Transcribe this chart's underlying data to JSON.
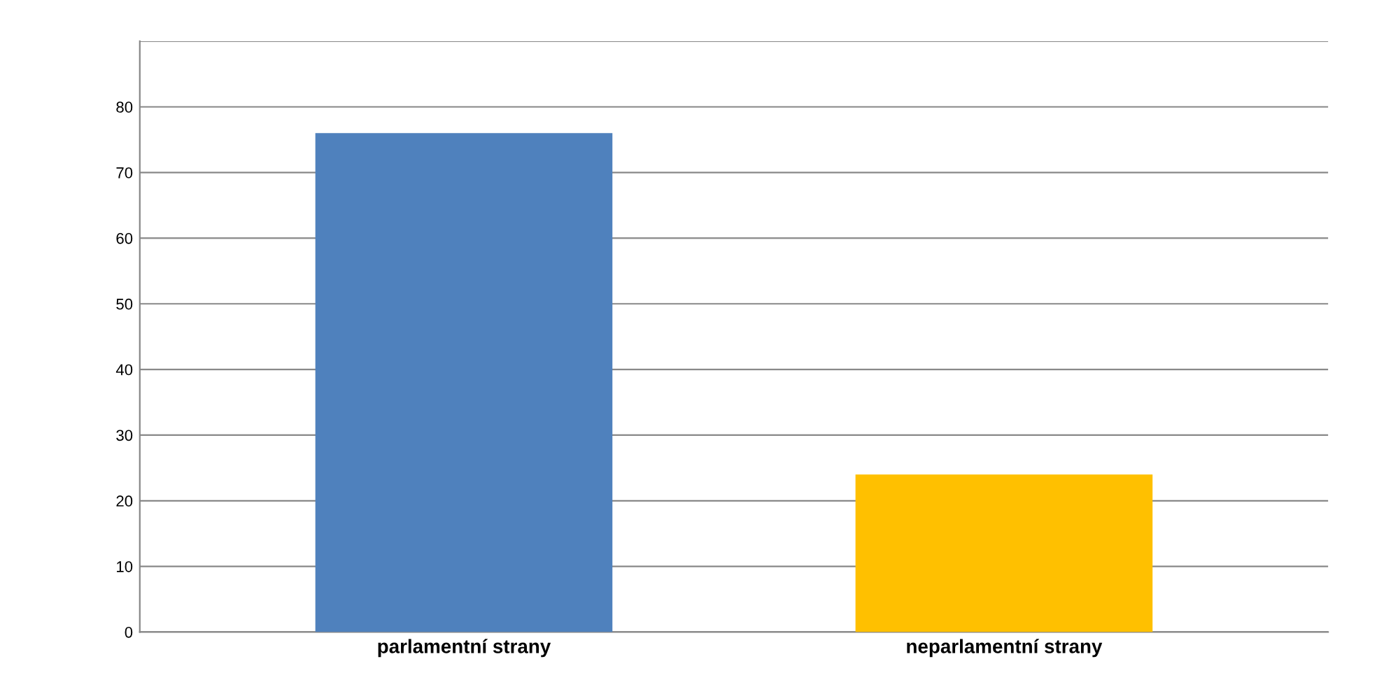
{
  "chart_data": {
    "type": "bar",
    "categories": [
      "parlamentní strany",
      "neparlamentní strany"
    ],
    "values": [
      76,
      24
    ],
    "colors": [
      "#4f81bd",
      "#ffc000"
    ],
    "ylim": [
      0,
      90
    ],
    "yticks": [
      0,
      10,
      20,
      30,
      40,
      50,
      60,
      70,
      80,
      {
        "value": 90,
        "label": null
      }
    ],
    "grid": "y"
  }
}
